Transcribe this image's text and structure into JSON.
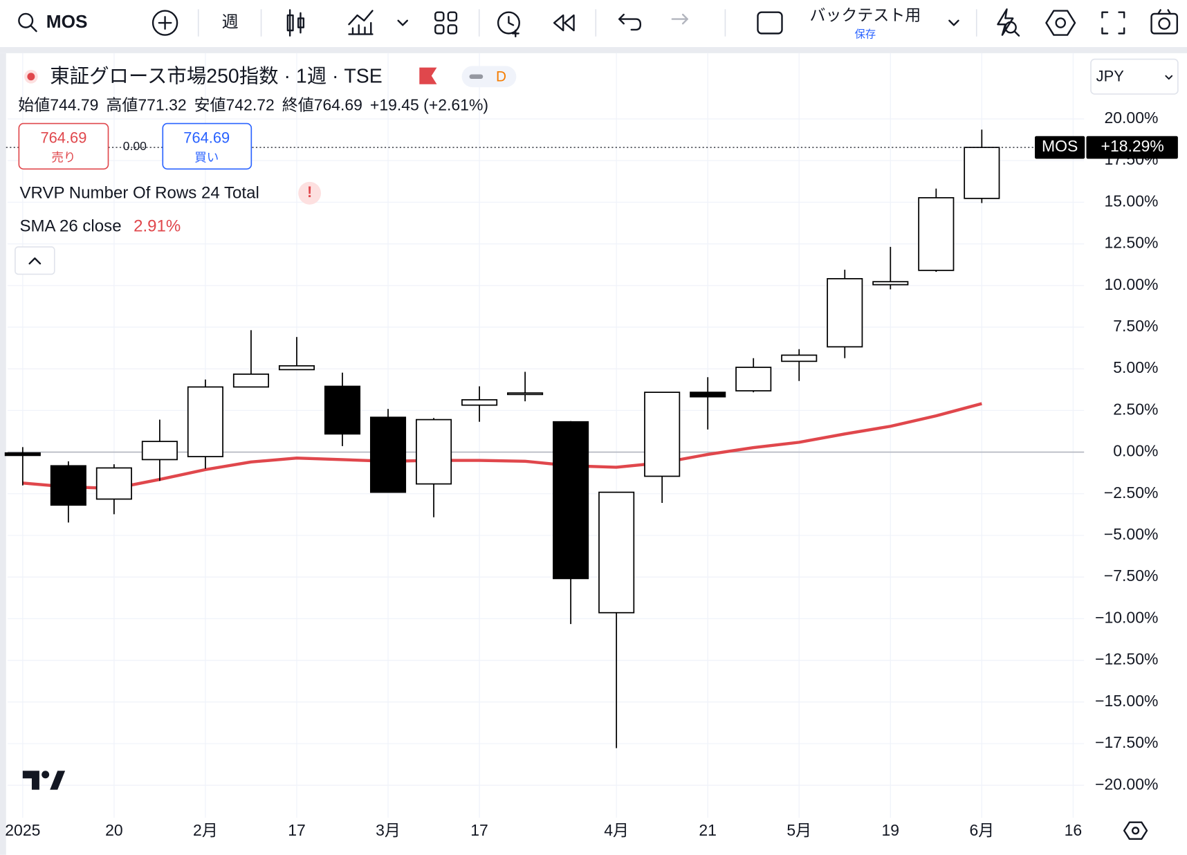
{
  "toolbar": {
    "symbol": "MOS",
    "interval": "週",
    "layout_name": "バックテスト用",
    "save": "保存"
  },
  "header": {
    "title": "東証グロース市場250指数 · 1週 · TSE",
    "badge": "D",
    "ohlc": [
      {
        "label": "始値",
        "value": "744.79"
      },
      {
        "label": "高値",
        "value": "771.32"
      },
      {
        "label": "安値",
        "value": "742.72"
      },
      {
        "label": "終値",
        "value": "764.69"
      }
    ],
    "change": "+19.45 (+2.61%)",
    "sell": {
      "price": "764.69",
      "label": "売り"
    },
    "spread": "0.00",
    "buy": {
      "price": "764.69",
      "label": "買い"
    },
    "indicators": [
      {
        "name": "VRVP Number Of Rows 24 Total",
        "alert": "!"
      }
    ],
    "currency": "JPY"
  },
  "chart_data": {
    "type": "candlestick",
    "categories": [
      "2025",
      null,
      "20",
      null,
      "2月",
      null,
      "17",
      null,
      "3月",
      null,
      "17",
      null,
      null,
      "4月",
      null,
      "21",
      null,
      "5月",
      null,
      "19",
      null,
      "6月",
      null,
      "16"
    ],
    "open": [
      -0.05,
      -0.82,
      -2.82,
      -0.45,
      -0.27,
      3.91,
      4.95,
      3.95,
      2.09,
      -1.91,
      2.82,
      3.55,
      1.82,
      -9.64,
      -1.45,
      3.59,
      3.68,
      5.45,
      6.32,
      10.05,
      10.91,
      15.23,
      null,
      null
    ],
    "high": [
      0.3,
      -0.55,
      -0.73,
      1.95,
      4.36,
      7.32,
      6.91,
      4.77,
      2.59,
      2.05,
      3.95,
      4.82,
      1.86,
      -2.41,
      3.59,
      4.5,
      5.64,
      6.18,
      10.95,
      12.32,
      15.82,
      19.36,
      null,
      null
    ],
    "low": [
      -2.0,
      -4.23,
      -3.73,
      -1.73,
      -1.0,
      3.91,
      4.95,
      0.36,
      -2.41,
      -3.91,
      1.82,
      3.05,
      -10.32,
      -17.77,
      -3.05,
      1.36,
      3.59,
      4.27,
      5.64,
      9.77,
      10.82,
      14.95,
      null,
      null
    ],
    "close": [
      -0.2,
      -3.18,
      -0.95,
      0.64,
      3.91,
      4.68,
      5.18,
      1.09,
      -2.41,
      1.95,
      3.14,
      3.55,
      -7.59,
      -2.41,
      3.59,
      3.32,
      5.09,
      5.82,
      10.41,
      10.23,
      15.27,
      18.29,
      null,
      null
    ],
    "up_color": "#ffffff",
    "down_color": "#000000",
    "last_symbol": "MOS",
    "last_label": "+18.29%",
    "sma": {
      "name": "SMA 26 close",
      "color": "#e0474c",
      "legend_value": "2.91%",
      "values": [
        -1.86,
        -2.09,
        -2.18,
        -1.64,
        -1.05,
        -0.59,
        -0.36,
        -0.45,
        -0.55,
        -0.5,
        -0.5,
        -0.55,
        -0.82,
        -0.91,
        -0.64,
        -0.14,
        0.27,
        0.59,
        1.09,
        1.55,
        2.18,
        2.91,
        null,
        null
      ]
    },
    "ylim": [
      -21.95,
      23.95
    ],
    "yticks": [
      {
        "value": 20,
        "label": "20.00%"
      },
      {
        "value": 17.5,
        "label": "17.50%"
      },
      {
        "value": 15,
        "label": "15.00%"
      },
      {
        "value": 12.5,
        "label": "12.50%"
      },
      {
        "value": 10,
        "label": "10.00%"
      },
      {
        "value": 7.5,
        "label": "7.50%"
      },
      {
        "value": 5,
        "label": "5.00%"
      },
      {
        "value": 2.5,
        "label": "2.50%"
      },
      {
        "value": 0,
        "label": "0.00%"
      },
      {
        "value": -2.5,
        "label": "−2.50%"
      },
      {
        "value": -5,
        "label": "−5.00%"
      },
      {
        "value": -7.5,
        "label": "−7.50%"
      },
      {
        "value": -10,
        "label": "−10.00%"
      },
      {
        "value": -12.5,
        "label": "−12.50%"
      },
      {
        "value": -15,
        "label": "−15.00%"
      },
      {
        "value": -17.5,
        "label": "−17.50%"
      },
      {
        "value": -20,
        "label": "−20.00%"
      }
    ],
    "grid": true
  }
}
